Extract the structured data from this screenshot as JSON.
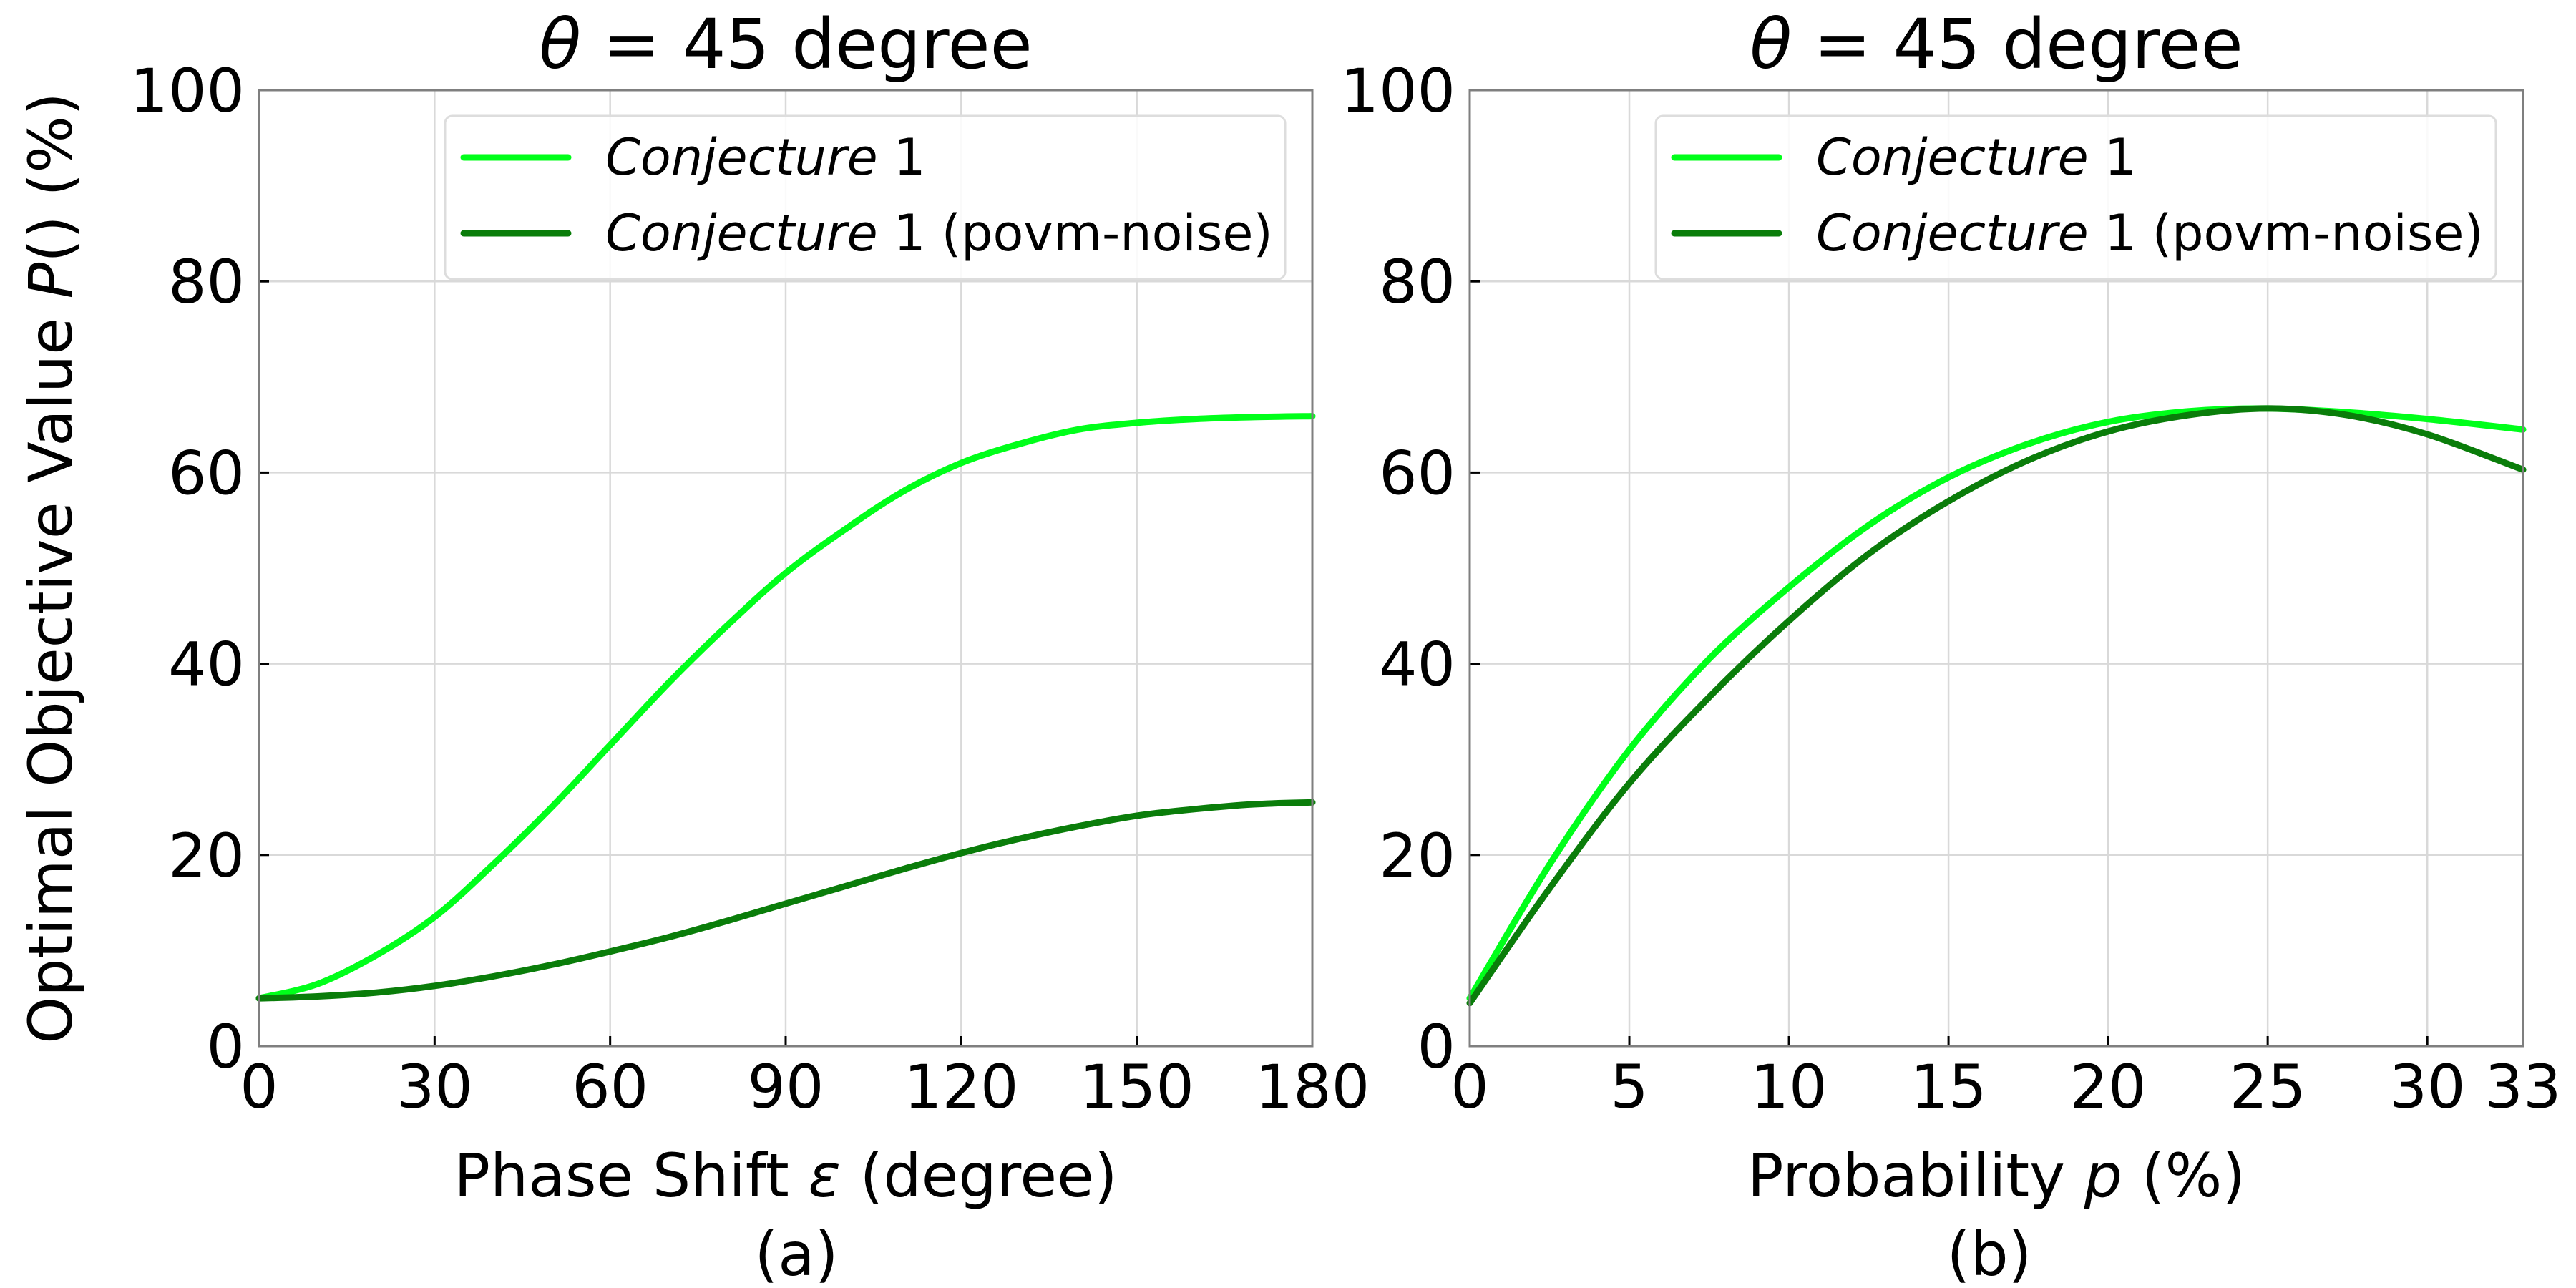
{
  "chart_data": [
    {
      "type": "line",
      "title_prefix": "θ",
      "title_rest": " = 45 degree",
      "xlabel_prefix": "Phase Shift ",
      "xlabel_var": "ε",
      "xlabel_suffix": " (degree)",
      "ylabel_prefix": "Optimal Objective Value ",
      "ylabel_var": "P",
      "ylabel_suffix": "() (%)",
      "panel_label": "(a)",
      "xlim": [
        0,
        180
      ],
      "ylim": [
        0,
        100
      ],
      "xticks": [
        0,
        30,
        60,
        90,
        120,
        150,
        180
      ],
      "xtick_labels": [
        "0",
        "30",
        "60",
        "90",
        "120",
        "150",
        "180"
      ],
      "yticks": [
        0,
        20,
        40,
        60,
        80,
        100
      ],
      "ytick_labels": [
        "0",
        "20",
        "40",
        "60",
        "80",
        "100"
      ],
      "grid": true,
      "legend_position": "top-right",
      "series": [
        {
          "name_italic": "Conjecture",
          "name_rest": " 1",
          "color": "#00ff1a",
          "x": [
            0,
            10,
            20,
            30,
            40,
            50,
            60,
            70,
            80,
            90,
            100,
            110,
            120,
            130,
            140,
            150,
            160,
            170,
            180
          ],
          "y": [
            5.0,
            6.5,
            9.5,
            13.5,
            19.0,
            25.0,
            31.5,
            38.0,
            44.0,
            49.5,
            54.0,
            58.0,
            61.0,
            63.0,
            64.5,
            65.2,
            65.6,
            65.8,
            65.9
          ]
        },
        {
          "name_italic": "Conjecture",
          "name_rest": " 1 (povm-noise)",
          "color": "#0a7d0a",
          "x": [
            0,
            10,
            20,
            30,
            40,
            50,
            60,
            70,
            80,
            90,
            100,
            110,
            120,
            130,
            140,
            150,
            160,
            170,
            180
          ],
          "y": [
            5.0,
            5.2,
            5.6,
            6.3,
            7.3,
            8.5,
            9.9,
            11.4,
            13.1,
            14.9,
            16.7,
            18.5,
            20.2,
            21.7,
            23.0,
            24.1,
            24.8,
            25.3,
            25.5
          ]
        }
      ]
    },
    {
      "type": "line",
      "title_prefix": "θ",
      "title_rest": " = 45 degree",
      "xlabel_prefix": "Probability ",
      "xlabel_var": "p",
      "xlabel_suffix": " (%)",
      "panel_label": "(b)",
      "xlim": [
        0,
        33
      ],
      "ylim": [
        0,
        100
      ],
      "xticks": [
        0,
        5,
        10,
        15,
        20,
        25,
        30,
        33
      ],
      "xtick_labels": [
        "0",
        "5",
        "10",
        "15",
        "20",
        "25",
        "30",
        "33"
      ],
      "yticks": [
        0,
        20,
        40,
        60,
        80,
        100
      ],
      "ytick_labels": [
        "0",
        "20",
        "40",
        "60",
        "80",
        "100"
      ],
      "grid": true,
      "legend_position": "top-right",
      "series": [
        {
          "name_italic": "Conjecture",
          "name_rest": " 1",
          "color": "#00ff1a",
          "x": [
            0,
            2.5,
            5,
            7.5,
            10,
            12.5,
            15,
            17.5,
            20,
            22.5,
            25,
            27.5,
            30,
            33
          ],
          "y": [
            5.0,
            19.0,
            31.0,
            40.5,
            48.0,
            54.5,
            59.5,
            63.0,
            65.3,
            66.4,
            66.7,
            66.3,
            65.6,
            64.5
          ]
        },
        {
          "name_italic": "Conjecture",
          "name_rest": " 1 (povm-noise)",
          "color": "#0a7d0a",
          "x": [
            0,
            2.5,
            5,
            7.5,
            10,
            12.5,
            15,
            17.5,
            20,
            22.5,
            25,
            27.5,
            30,
            33
          ],
          "y": [
            4.5,
            16.5,
            27.5,
            36.5,
            44.5,
            51.5,
            57.0,
            61.3,
            64.3,
            66.0,
            66.7,
            66.0,
            64.0,
            60.3
          ]
        }
      ]
    }
  ]
}
